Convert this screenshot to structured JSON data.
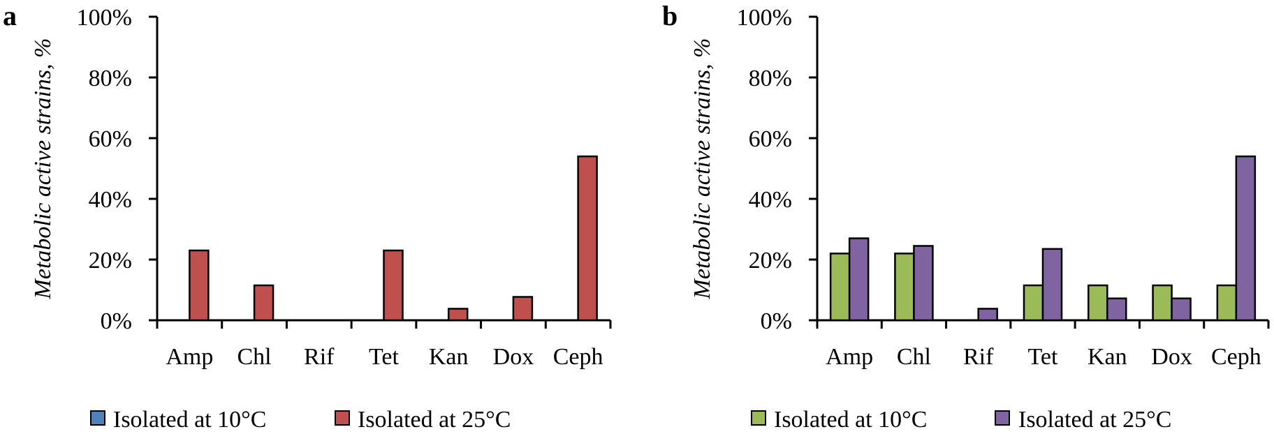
{
  "chart_data": [
    {
      "type": "bar",
      "panel_label": "a",
      "ylabel": "Metabolic active strains, %",
      "yticks": [
        "0%",
        "20%",
        "40%",
        "60%",
        "80%",
        "100%"
      ],
      "ylim": [
        0,
        100
      ],
      "categories": [
        "Amp",
        "Chl",
        "Rif",
        "Tet",
        "Kan",
        "Dox",
        "Ceph"
      ],
      "series": [
        {
          "name": "Isolated at 10°C",
          "color": "#4F81BD",
          "values": [
            0,
            0,
            0,
            0,
            0,
            0,
            0
          ]
        },
        {
          "name": "Isolated at 25°C",
          "color": "#C0504D",
          "values": [
            23,
            11.5,
            0,
            23,
            3.8,
            7.7,
            54
          ]
        }
      ],
      "legend_position": "bottom"
    },
    {
      "type": "bar",
      "panel_label": "b",
      "ylabel": "Metabolic active strains, %",
      "yticks": [
        "0%",
        "20%",
        "40%",
        "60%",
        "80%",
        "100%"
      ],
      "ylim": [
        0,
        100
      ],
      "categories": [
        "Amp",
        "Chl",
        "Rif",
        "Tet",
        "Kan",
        "Dox",
        "Ceph"
      ],
      "series": [
        {
          "name": "Isolated at 10°C",
          "color": "#9BBB59",
          "values": [
            22,
            22,
            0,
            11.5,
            11.5,
            11.5,
            11.5
          ]
        },
        {
          "name": "Isolated at 25°C",
          "color": "#8064A2",
          "values": [
            27,
            24.5,
            3.8,
            23.5,
            7.2,
            7.2,
            54
          ]
        }
      ],
      "legend_position": "bottom"
    }
  ]
}
